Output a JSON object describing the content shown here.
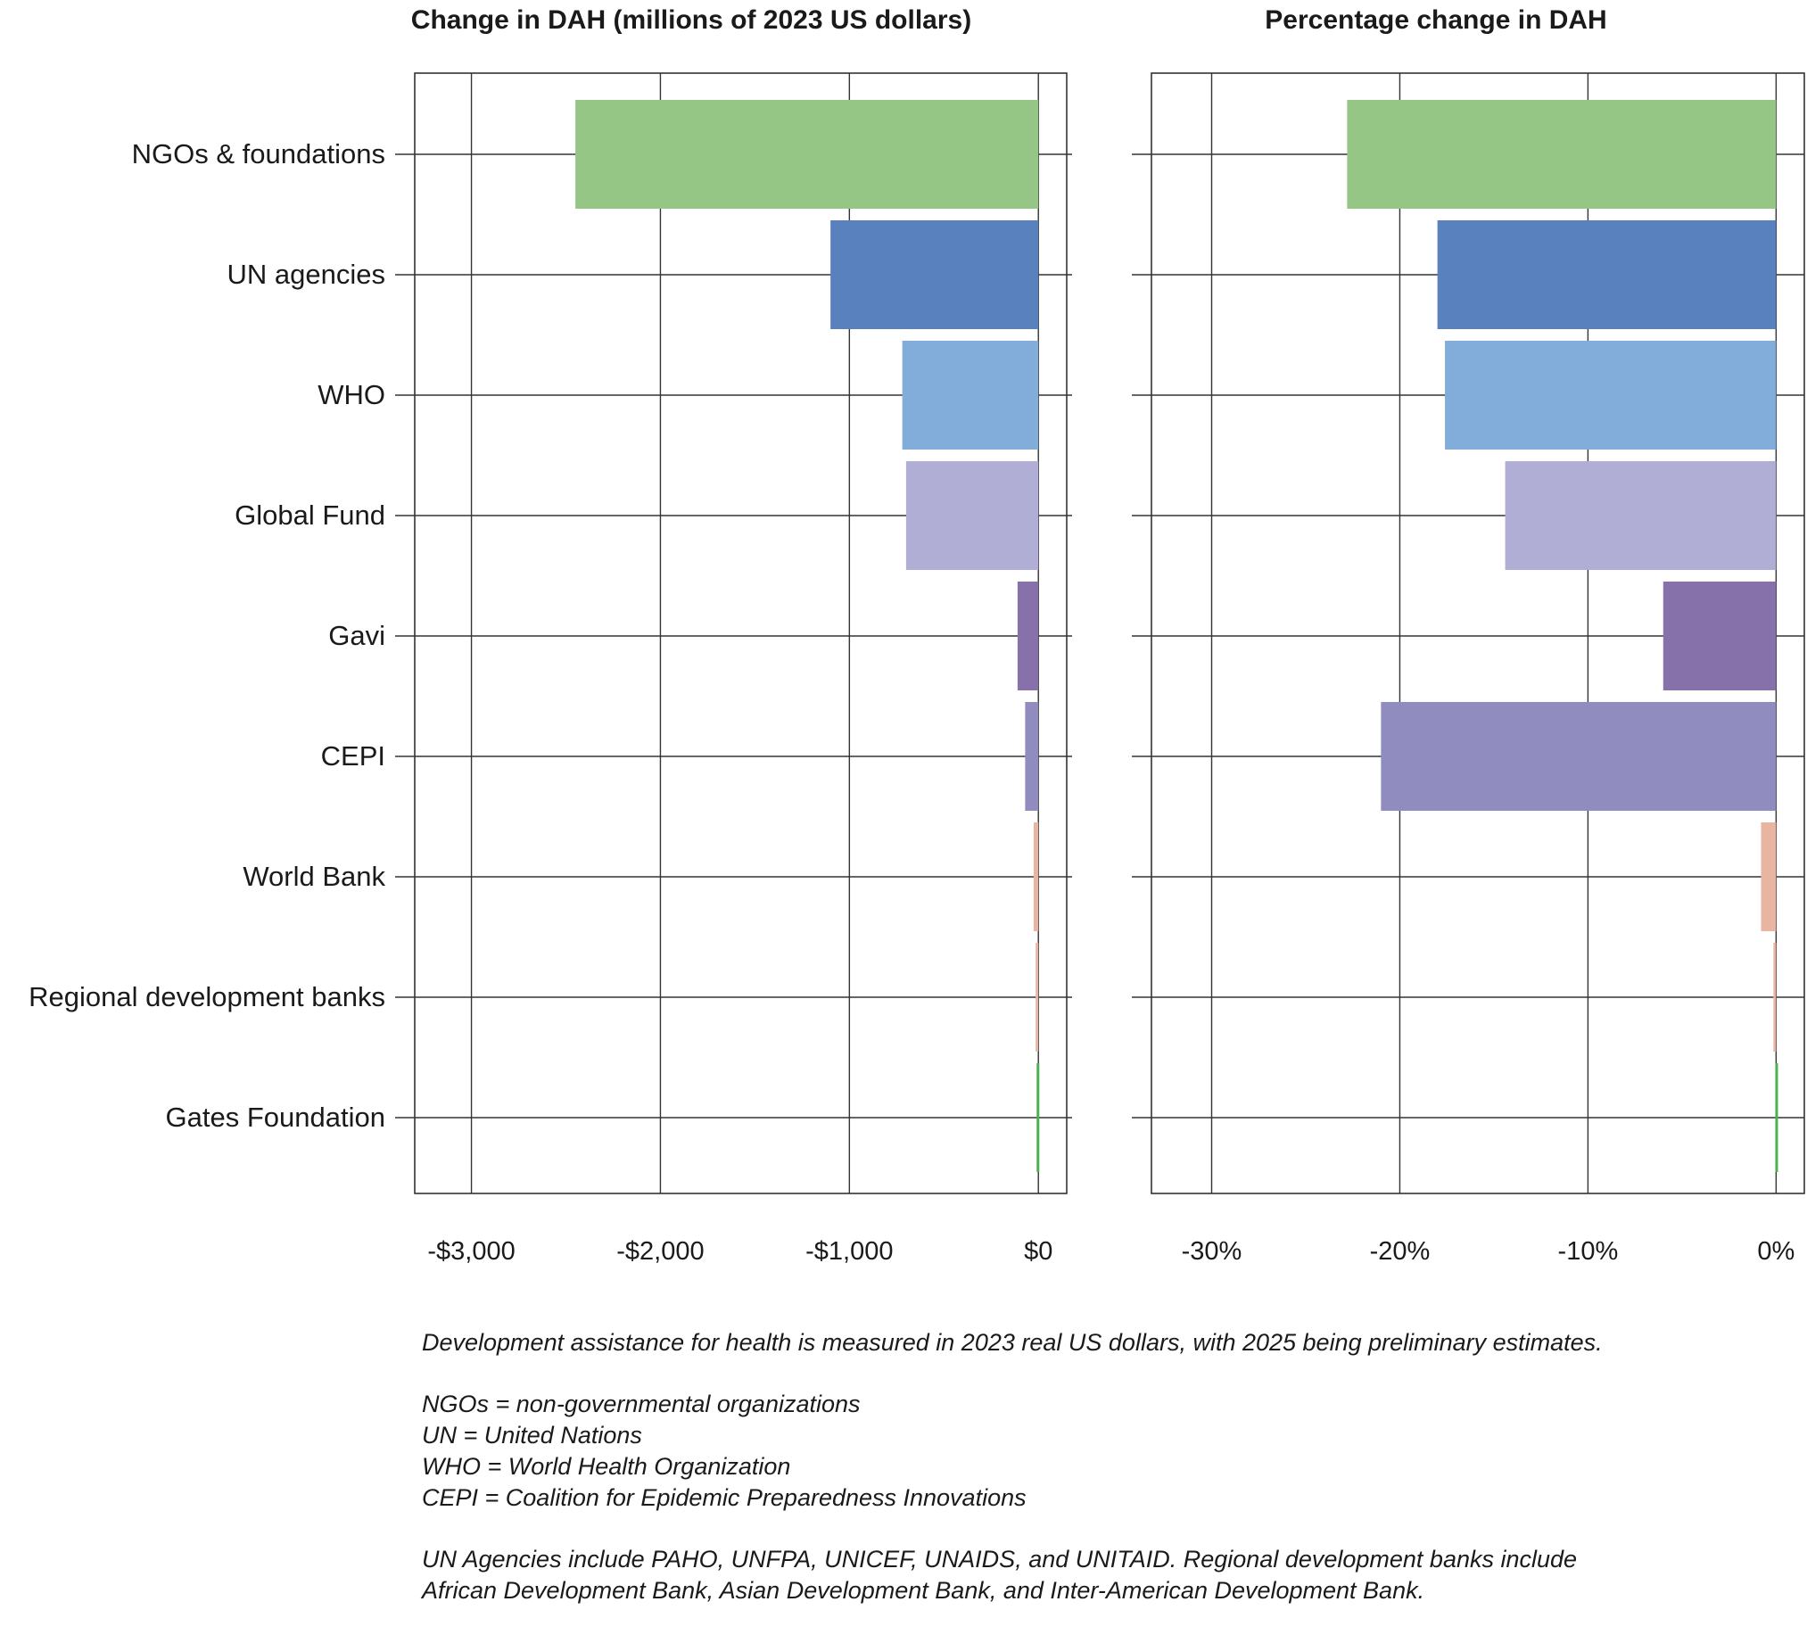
{
  "chart_data": [
    {
      "type": "bar",
      "orientation": "horizontal",
      "title": "Change in DAH (millions of 2023 US dollars)",
      "categories": [
        "NGOs & foundations",
        "UN agencies",
        "WHO",
        "Global Fund",
        "Gavi",
        "CEPI",
        "World Bank",
        "Regional development banks",
        "Gates Foundation"
      ],
      "values": [
        -2450,
        -1100,
        -720,
        -700,
        -110,
        -70,
        -25,
        0,
        5
      ],
      "xlim": [
        -3300,
        150
      ],
      "xticks": [
        -3000,
        -2000,
        -1000,
        0
      ],
      "xtick_labels": [
        "-$3,000",
        "-$2,000",
        "-$1,000",
        "$0"
      ],
      "colors": [
        "#96c686",
        "#5881be",
        "#82acd9",
        "#b0aed4",
        "#8771aa",
        "#918cc0",
        "#e8b5a3",
        "#e8b5a3",
        "#4caf50"
      ],
      "grid": true
    },
    {
      "type": "bar",
      "orientation": "horizontal",
      "title": "Percentage change in DAH",
      "categories": [
        "NGOs & foundations",
        "UN agencies",
        "WHO",
        "Global Fund",
        "Gavi",
        "CEPI",
        "World Bank",
        "Regional development banks",
        "Gates Foundation"
      ],
      "values": [
        -22.8,
        -18.0,
        -17.6,
        -14.4,
        -6.0,
        -21.0,
        -0.8,
        0,
        0.1
      ],
      "xlim": [
        -33.2,
        1.5
      ],
      "xticks": [
        -30,
        -20,
        -10,
        0
      ],
      "xtick_labels": [
        "-30%",
        "-20%",
        "-10%",
        "0%"
      ],
      "colors": [
        "#96c686",
        "#5881be",
        "#82acd9",
        "#b0aed4",
        "#8771aa",
        "#918cc0",
        "#e8b5a3",
        "#e8b5a3",
        "#4caf50"
      ],
      "grid": true
    }
  ],
  "notes": {
    "line1": "Development assistance for health is measured in 2023 real US dollars, with 2025 being preliminary estimates.",
    "abbr1": "NGOs = non-governmental organizations",
    "abbr2": "UN = United Nations",
    "abbr3": "WHO = World Health Organization",
    "abbr4": "CEPI = Coalition for Epidemic Preparedness Innovations",
    "line2": "UN Agencies include PAHO, UNFPA, UNICEF, UNAIDS, and UNITAID. Regional development banks include",
    "line3": "African Development Bank, Asian Development Bank, and Inter-American Development Bank."
  }
}
